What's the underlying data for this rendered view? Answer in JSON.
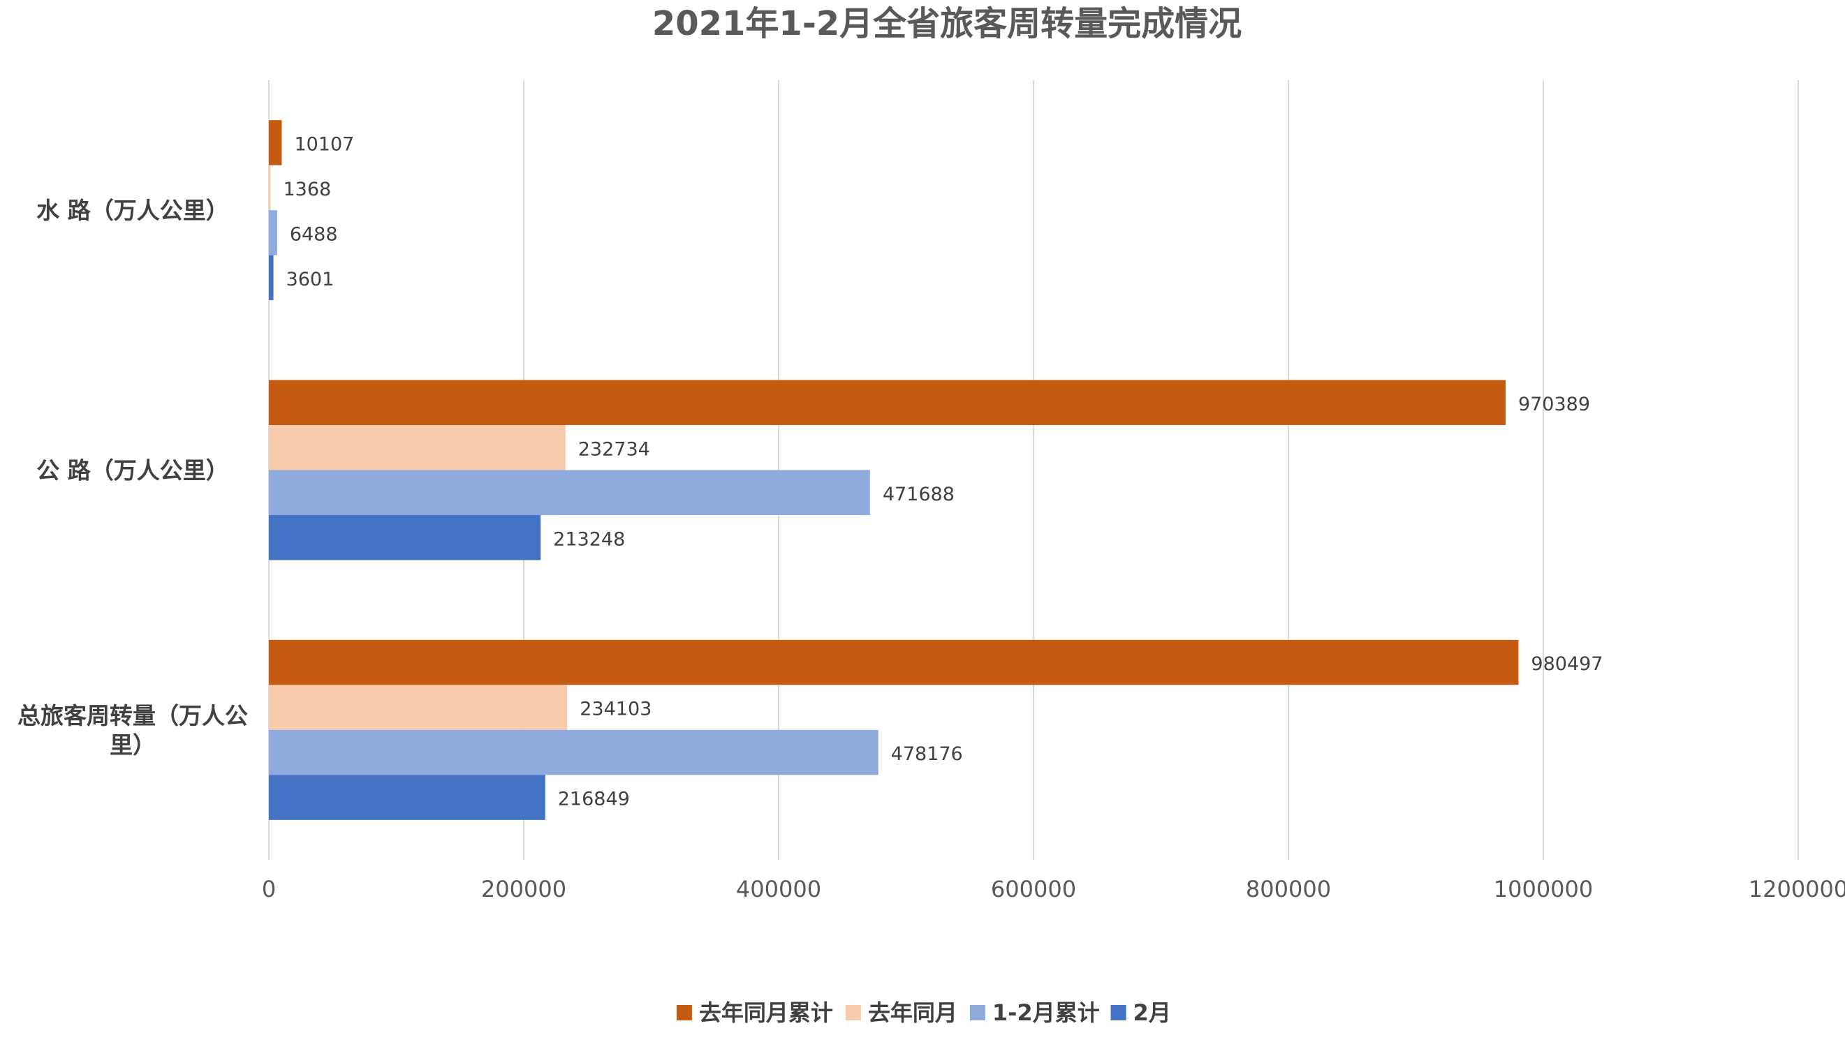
{
  "chart_data": {
    "type": "bar",
    "orientation": "horizontal",
    "title": "2021年1-2月全省旅客周转量完成情况",
    "categories": [
      "水 路（万人公里）",
      "公 路（万人公里）",
      "总旅客周转量（万人公里）"
    ],
    "category_display": [
      [
        "水 路（万人公里）"
      ],
      [
        "公 路（万人公里）"
      ],
      [
        "总旅客周转量（万人公",
        "里）"
      ]
    ],
    "series": [
      {
        "name": "去年同月累计",
        "color": "#C55A11",
        "values": [
          10107,
          970389,
          980497
        ]
      },
      {
        "name": "去年同月",
        "color": "#F8CBAD",
        "values": [
          1368,
          232734,
          234103
        ]
      },
      {
        "name": "1-2月累计",
        "color": "#8FAADC",
        "values": [
          6488,
          471688,
          478176
        ]
      },
      {
        "name": "2月",
        "color": "#4472C4",
        "values": [
          3601,
          213248,
          216849
        ]
      }
    ],
    "xlim": [
      0,
      1200000
    ],
    "x_ticks": [
      "0",
      "200000",
      "400000",
      "600000",
      "800000",
      "1000000",
      "1200000"
    ],
    "grid": "vertical",
    "legend_position": "bottom",
    "data_labels": true
  }
}
